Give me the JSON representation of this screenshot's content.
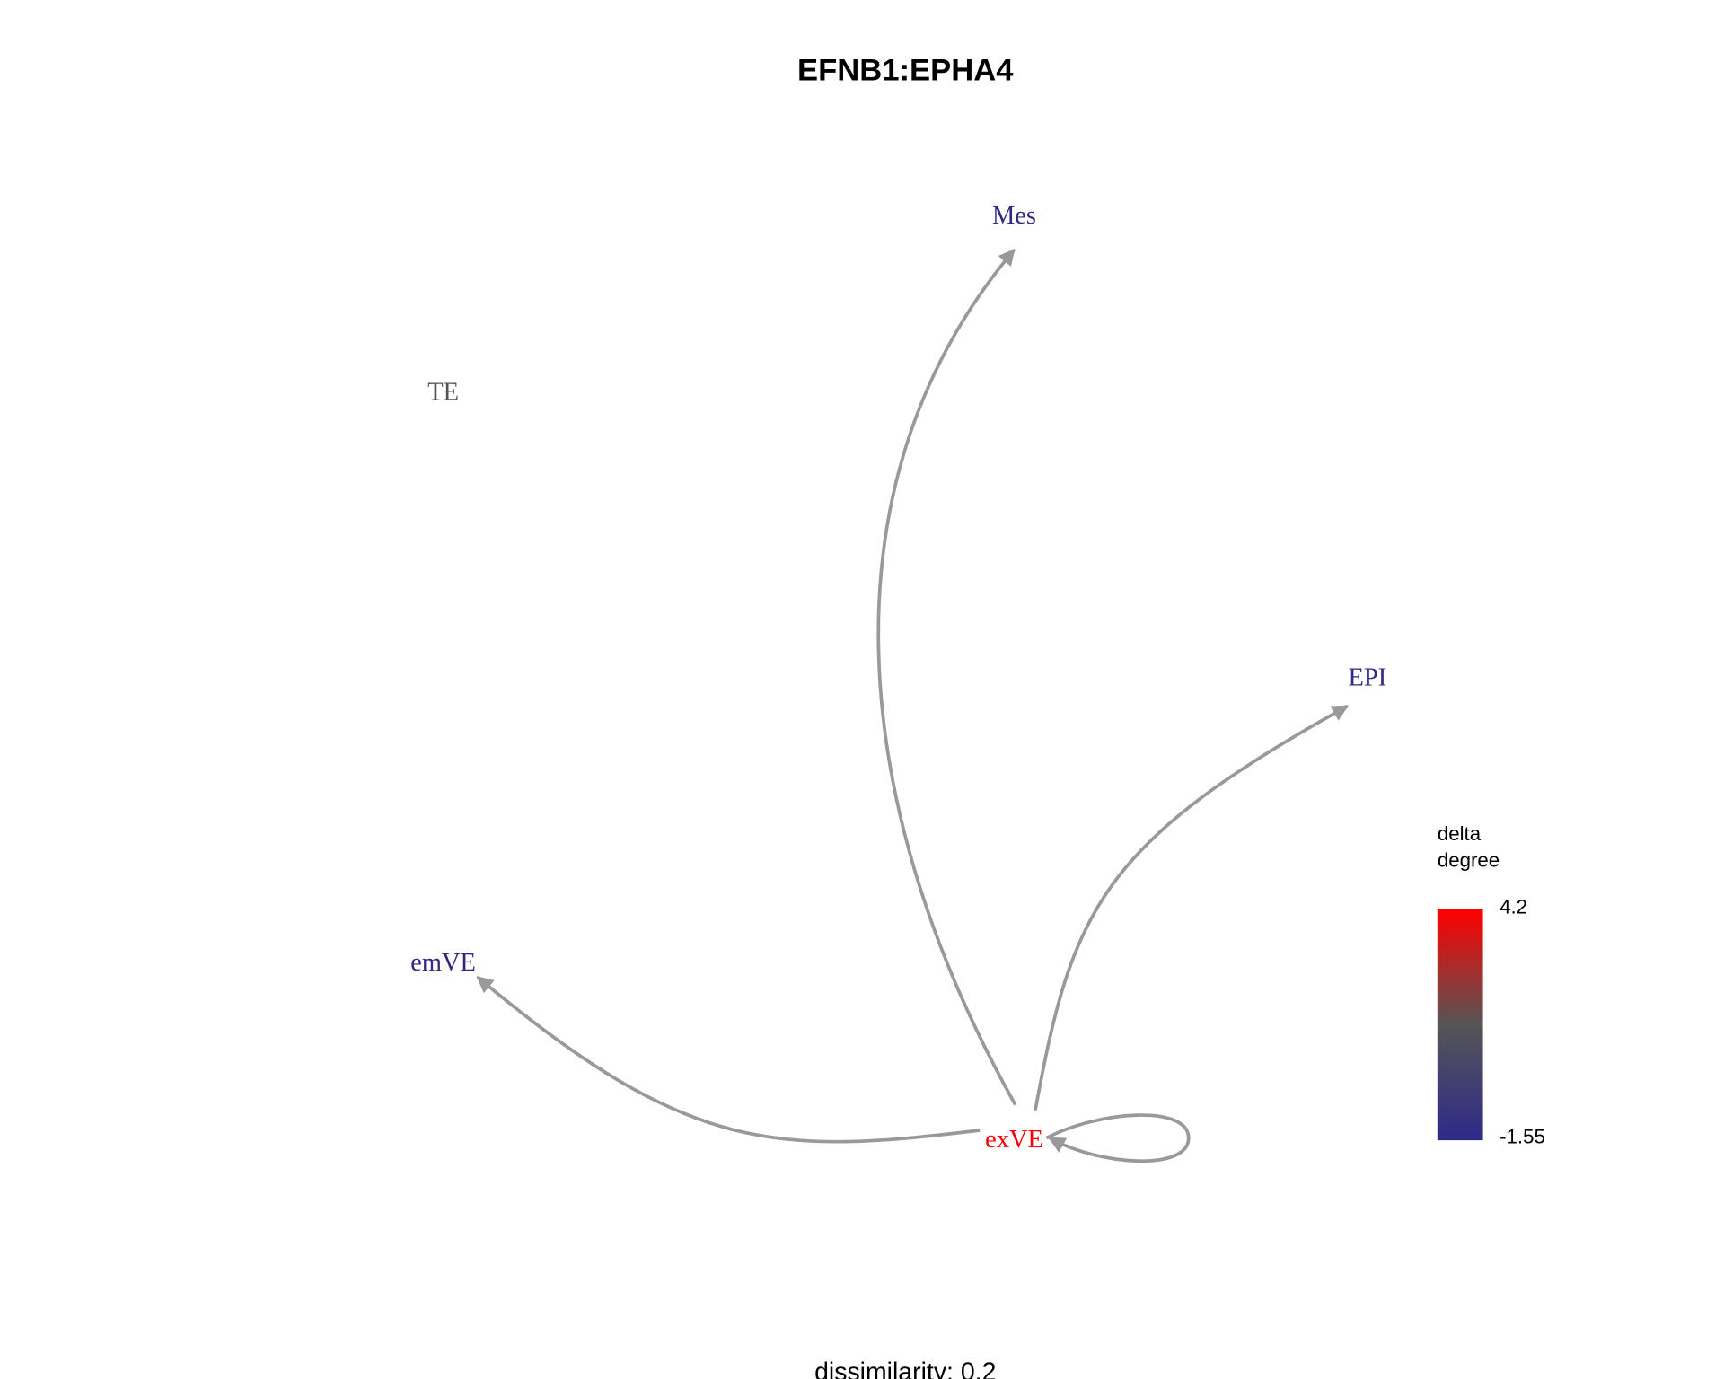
{
  "title": "EFNB1:EPHA4",
  "nodes": [
    {
      "label": "Mes",
      "color": "#2e2a82"
    },
    {
      "label": "TE",
      "color": "#555555"
    },
    {
      "label": "EPI",
      "color": "#2e2a82"
    },
    {
      "label": "emVE",
      "color": "#2e2a82"
    },
    {
      "label": "exVE",
      "color": "#ff0000"
    }
  ],
  "legend": {
    "title": [
      "delta",
      "degree"
    ],
    "max": 4.2,
    "min": -1.55
  },
  "footer": "dissimilarity: 0.2"
}
